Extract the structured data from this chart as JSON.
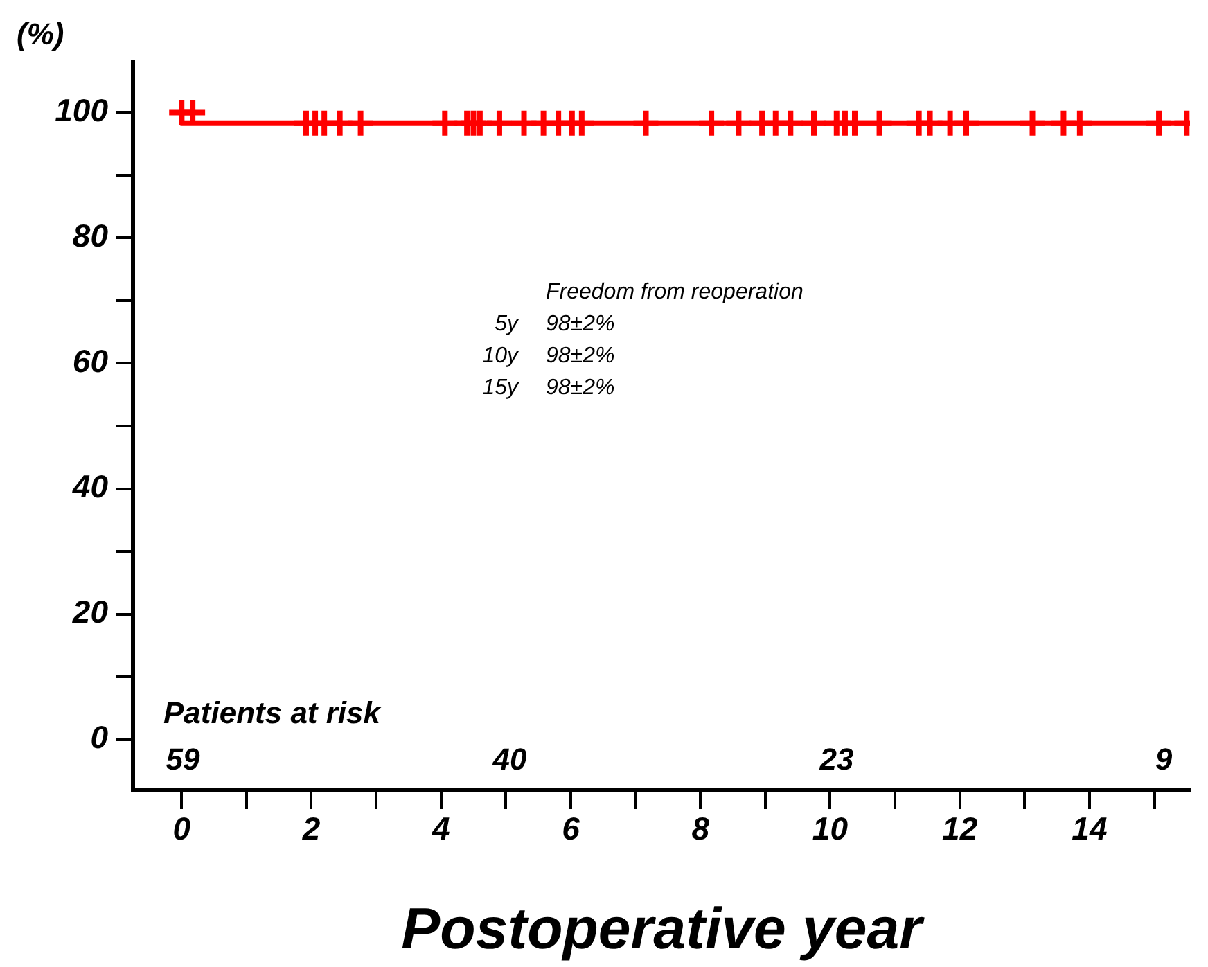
{
  "chart_data": {
    "type": "step",
    "xlabel": "Postoperative year",
    "ylabel": "(%)",
    "xlim": [
      -0.75,
      15.55
    ],
    "ylim": [
      -8,
      108
    ],
    "xticks": [
      0,
      {
        "value": 1,
        "label": null
      },
      2,
      {
        "value": 3,
        "label": null
      },
      4,
      {
        "value": 5,
        "label": null
      },
      6,
      {
        "value": 7,
        "label": null
      },
      8,
      {
        "value": 9,
        "label": null
      },
      10,
      {
        "value": 11,
        "label": null
      },
      12,
      {
        "value": 13,
        "label": null
      },
      14,
      {
        "value": 15,
        "label": null
      }
    ],
    "yticks": [
      0,
      {
        "value": 10,
        "label": null
      },
      20,
      {
        "value": 30,
        "label": null
      },
      40,
      {
        "value": 50,
        "label": null
      },
      60,
      {
        "value": 70,
        "label": null
      },
      80,
      {
        "value": 90,
        "label": null
      },
      100
    ],
    "grid": false,
    "legend": false,
    "line_style": "solid",
    "series": [
      {
        "color": "#ff0000",
        "marker": "none",
        "x": [
          0,
          0.78,
          15.55
        ],
        "values": [
          100,
          98.3,
          98.3
        ]
      },
      {
        "type": "scatter",
        "color": "#ff0000",
        "marker": "cross",
        "x": [
          0,
          0.17,
          1.92,
          2.06,
          2.2,
          2.44,
          2.76,
          4.06,
          4.4,
          4.5,
          4.6,
          4.9,
          5.28,
          5.58,
          5.81,
          6.02,
          6.17,
          7.16,
          8.17,
          8.59,
          8.95,
          9.16,
          9.39,
          9.75,
          10.1,
          10.23,
          10.38,
          10.76,
          11.37,
          11.54,
          11.85,
          12.1,
          13.12,
          13.6,
          13.85,
          15.07,
          15.5
        ],
        "values": [
          100,
          100,
          98.3,
          98.3,
          98.3,
          98.3,
          98.3,
          98.3,
          98.3,
          98.3,
          98.3,
          98.3,
          98.3,
          98.3,
          98.3,
          98.3,
          98.3,
          98.3,
          98.3,
          98.3,
          98.3,
          98.3,
          98.3,
          98.3,
          98.3,
          98.3,
          98.3,
          98.3,
          98.3,
          98.3,
          98.3,
          98.3,
          98.3,
          98.3,
          98.3,
          98.3,
          98.3
        ]
      }
    ],
    "annotations": [
      "Patients at risk",
      "Freedom from reoperation",
      "5y 98±2%",
      "10y 98±2%",
      "15y 98±2%",
      "59",
      "40",
      "23",
      "9"
    ]
  }
}
